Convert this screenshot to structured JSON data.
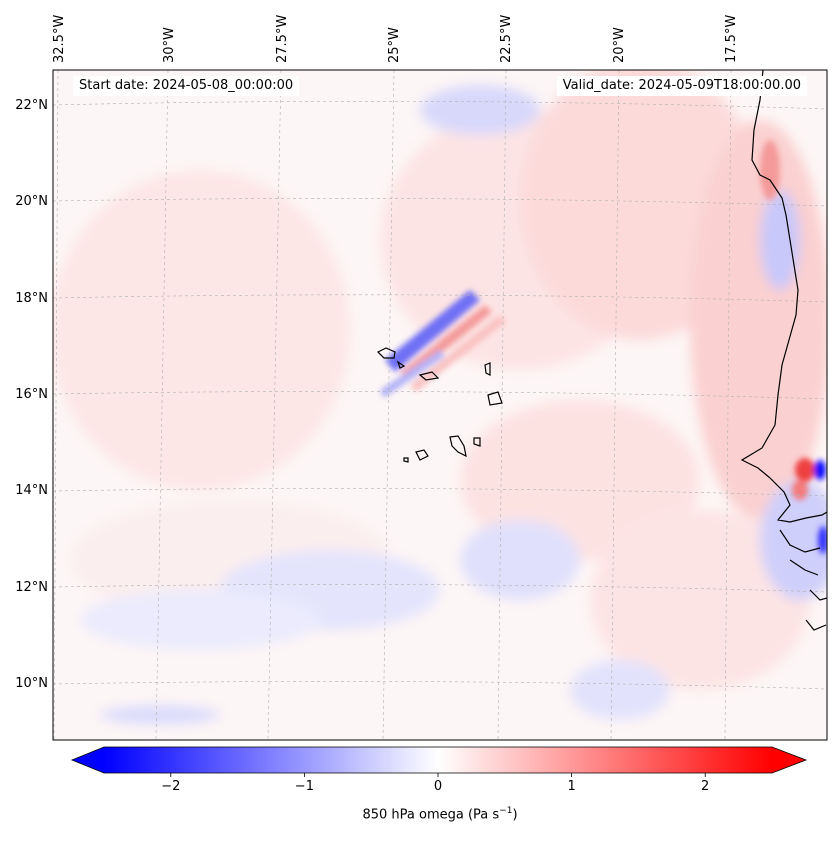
{
  "map": {
    "start_date": "Start date: 2024-05-08_00:00:00",
    "valid_date": "Valid_date: 2024-05-09T18:00:00.00",
    "lon_labels": [
      "32.5°W",
      "30°W",
      "27.5°W",
      "25°W",
      "22.5°W",
      "20°W",
      "17.5°W"
    ],
    "lat_labels": [
      "22°N",
      "20°N",
      "18°N",
      "16°N",
      "14°N",
      "12°N",
      "10°N"
    ],
    "colorbar": {
      "ticks": [
        "−2",
        "−1",
        "0",
        "1",
        "2"
      ],
      "tick_values": [
        -2,
        -1,
        0,
        1,
        2
      ],
      "range": [
        -2.5,
        2.5
      ],
      "label_main": "850 hPa omega (Pa s",
      "label_exp": "−1",
      "label_close": ")",
      "cmap": "bwr",
      "colors": {
        "low": "#0000ff",
        "mid": "#ffffff",
        "high": "#ff0000"
      }
    },
    "field_description_colors": {
      "coastline": "#000000",
      "grid": "#b0b0b0"
    }
  }
}
